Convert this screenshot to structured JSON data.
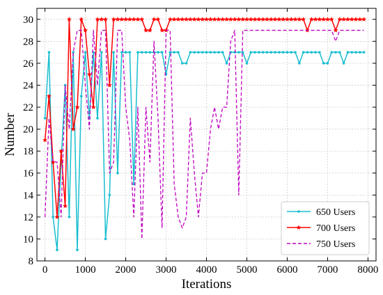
{
  "chart_data": {
    "type": "line",
    "title": "",
    "xlabel": "Iterations",
    "ylabel": "Number",
    "xlim": [
      -200,
      8200
    ],
    "ylim": [
      8,
      31
    ],
    "xticks": [
      0,
      1000,
      2000,
      3000,
      4000,
      5000,
      6000,
      7000,
      8000
    ],
    "yticks": [
      8,
      10,
      12,
      14,
      16,
      18,
      20,
      22,
      24,
      26,
      28,
      30
    ],
    "grid": true,
    "legend_position": "lower-right",
    "series": [
      {
        "name": "650 Users",
        "color": "#17BECF",
        "line_style": "solid",
        "marker": "dot",
        "points": [
          [
            0,
            21
          ],
          [
            100,
            27
          ],
          [
            200,
            12
          ],
          [
            300,
            9
          ],
          [
            400,
            17
          ],
          [
            500,
            24
          ],
          [
            600,
            12
          ],
          [
            700,
            27
          ],
          [
            800,
            9
          ],
          [
            900,
            23
          ],
          [
            1000,
            27
          ],
          [
            1100,
            21
          ],
          [
            1200,
            27
          ],
          [
            1300,
            21
          ],
          [
            1400,
            27
          ],
          [
            1500,
            10
          ],
          [
            1600,
            14
          ],
          [
            1700,
            27
          ],
          [
            1800,
            16
          ],
          [
            1900,
            27
          ],
          [
            2000,
            27
          ],
          [
            2100,
            27
          ],
          [
            2200,
            15
          ],
          [
            2300,
            27
          ],
          [
            2400,
            27
          ],
          [
            2500,
            27
          ],
          [
            2600,
            27
          ],
          [
            2700,
            27
          ],
          [
            2800,
            27
          ],
          [
            2900,
            27
          ],
          [
            3000,
            25
          ],
          [
            3100,
            27
          ],
          [
            3200,
            27
          ],
          [
            3300,
            27
          ],
          [
            3400,
            26
          ],
          [
            3500,
            26
          ],
          [
            3600,
            27
          ],
          [
            3700,
            27
          ],
          [
            3800,
            27
          ],
          [
            3900,
            27
          ],
          [
            4000,
            27
          ],
          [
            4100,
            27
          ],
          [
            4200,
            27
          ],
          [
            4300,
            27
          ],
          [
            4400,
            27
          ],
          [
            4500,
            26
          ],
          [
            4600,
            27
          ],
          [
            4700,
            27
          ],
          [
            4800,
            27
          ],
          [
            4900,
            27
          ],
          [
            5000,
            26
          ],
          [
            5100,
            27
          ],
          [
            5200,
            27
          ],
          [
            5300,
            27
          ],
          [
            5400,
            27
          ],
          [
            5500,
            27
          ],
          [
            5600,
            27
          ],
          [
            5700,
            27
          ],
          [
            5800,
            27
          ],
          [
            5900,
            27
          ],
          [
            6000,
            27
          ],
          [
            6100,
            27
          ],
          [
            6200,
            27
          ],
          [
            6300,
            26
          ],
          [
            6400,
            27
          ],
          [
            6500,
            27
          ],
          [
            6600,
            27
          ],
          [
            6700,
            27
          ],
          [
            6800,
            27
          ],
          [
            6900,
            26
          ],
          [
            7000,
            26
          ],
          [
            7100,
            27
          ],
          [
            7200,
            27
          ],
          [
            7300,
            27
          ],
          [
            7400,
            26
          ],
          [
            7500,
            27
          ],
          [
            7600,
            27
          ],
          [
            7700,
            27
          ],
          [
            7800,
            27
          ],
          [
            7900,
            27
          ]
        ]
      },
      {
        "name": "700 Users",
        "color": "#FF0000",
        "line_style": "solid",
        "marker": "star",
        "points": [
          [
            0,
            19
          ],
          [
            100,
            23
          ],
          [
            200,
            17
          ],
          [
            300,
            12
          ],
          [
            400,
            18
          ],
          [
            500,
            13
          ],
          [
            600,
            30
          ],
          [
            700,
            20
          ],
          [
            800,
            22
          ],
          [
            900,
            30
          ],
          [
            1000,
            29
          ],
          [
            1100,
            25
          ],
          [
            1200,
            22
          ],
          [
            1300,
            30
          ],
          [
            1400,
            30
          ],
          [
            1500,
            30
          ],
          [
            1600,
            24
          ],
          [
            1700,
            30
          ],
          [
            1800,
            30
          ],
          [
            1900,
            30
          ],
          [
            2000,
            30
          ],
          [
            2100,
            30
          ],
          [
            2200,
            30
          ],
          [
            2300,
            30
          ],
          [
            2400,
            30
          ],
          [
            2500,
            29
          ],
          [
            2600,
            29
          ],
          [
            2700,
            30
          ],
          [
            2800,
            30
          ],
          [
            2900,
            29
          ],
          [
            3000,
            29
          ],
          [
            3100,
            30
          ],
          [
            3200,
            30
          ],
          [
            3300,
            30
          ],
          [
            3400,
            30
          ],
          [
            3500,
            30
          ],
          [
            3600,
            30
          ],
          [
            3700,
            30
          ],
          [
            3800,
            30
          ],
          [
            3900,
            30
          ],
          [
            4000,
            30
          ],
          [
            4100,
            30
          ],
          [
            4200,
            30
          ],
          [
            4300,
            30
          ],
          [
            4400,
            30
          ],
          [
            4500,
            30
          ],
          [
            4600,
            30
          ],
          [
            4700,
            30
          ],
          [
            4800,
            30
          ],
          [
            4900,
            30
          ],
          [
            5000,
            30
          ],
          [
            5100,
            30
          ],
          [
            5200,
            30
          ],
          [
            5300,
            30
          ],
          [
            5400,
            30
          ],
          [
            5500,
            30
          ],
          [
            5600,
            30
          ],
          [
            5700,
            30
          ],
          [
            5800,
            30
          ],
          [
            5900,
            30
          ],
          [
            6000,
            30
          ],
          [
            6100,
            30
          ],
          [
            6200,
            30
          ],
          [
            6300,
            30
          ],
          [
            6400,
            30
          ],
          [
            6500,
            29
          ],
          [
            6600,
            30
          ],
          [
            6700,
            30
          ],
          [
            6800,
            30
          ],
          [
            6900,
            30
          ],
          [
            7000,
            30
          ],
          [
            7100,
            30
          ],
          [
            7200,
            29
          ],
          [
            7300,
            30
          ],
          [
            7400,
            30
          ],
          [
            7500,
            30
          ],
          [
            7600,
            30
          ],
          [
            7700,
            30
          ],
          [
            7800,
            30
          ],
          [
            7900,
            30
          ]
        ]
      },
      {
        "name": "750 Users",
        "color": "#BF00BF",
        "line_style": "dashed",
        "marker": "none",
        "points": [
          [
            0,
            12
          ],
          [
            100,
            21
          ],
          [
            200,
            17
          ],
          [
            300,
            17
          ],
          [
            400,
            12
          ],
          [
            500,
            24
          ],
          [
            600,
            20
          ],
          [
            700,
            27
          ],
          [
            800,
            29
          ],
          [
            900,
            29
          ],
          [
            1000,
            24
          ],
          [
            1100,
            20
          ],
          [
            1200,
            29
          ],
          [
            1300,
            24
          ],
          [
            1400,
            29
          ],
          [
            1500,
            29
          ],
          [
            1600,
            16
          ],
          [
            1700,
            17
          ],
          [
            1800,
            29
          ],
          [
            1900,
            29
          ],
          [
            2000,
            22
          ],
          [
            2100,
            19
          ],
          [
            2200,
            12
          ],
          [
            2300,
            22
          ],
          [
            2400,
            10
          ],
          [
            2500,
            22
          ],
          [
            2600,
            17
          ],
          [
            2700,
            28
          ],
          [
            2800,
            21
          ],
          [
            2900,
            11
          ],
          [
            3000,
            29
          ],
          [
            3100,
            29
          ],
          [
            3200,
            15
          ],
          [
            3300,
            12
          ],
          [
            3400,
            11
          ],
          [
            3500,
            12
          ],
          [
            3600,
            21
          ],
          [
            3700,
            16
          ],
          [
            3800,
            12
          ],
          [
            3900,
            16
          ],
          [
            4000,
            16
          ],
          [
            4100,
            20
          ],
          [
            4200,
            22
          ],
          [
            4300,
            20
          ],
          [
            4400,
            22
          ],
          [
            4500,
            22
          ],
          [
            4600,
            28
          ],
          [
            4700,
            29
          ],
          [
            4800,
            14
          ],
          [
            4900,
            29
          ],
          [
            5000,
            29
          ],
          [
            5100,
            29
          ],
          [
            5200,
            29
          ],
          [
            5300,
            29
          ],
          [
            5400,
            29
          ],
          [
            5500,
            29
          ],
          [
            5600,
            29
          ],
          [
            5700,
            29
          ],
          [
            5800,
            29
          ],
          [
            5900,
            29
          ],
          [
            6000,
            29
          ],
          [
            6100,
            29
          ],
          [
            6200,
            29
          ],
          [
            6300,
            29
          ],
          [
            6400,
            29
          ],
          [
            6500,
            29
          ],
          [
            6600,
            29
          ],
          [
            6700,
            29
          ],
          [
            6800,
            29
          ],
          [
            6900,
            29
          ],
          [
            7000,
            29
          ],
          [
            7100,
            29
          ],
          [
            7200,
            28
          ],
          [
            7300,
            29
          ],
          [
            7400,
            29
          ],
          [
            7500,
            29
          ],
          [
            7600,
            29
          ],
          [
            7700,
            29
          ],
          [
            7800,
            29
          ],
          [
            7900,
            29
          ]
        ]
      }
    ]
  }
}
